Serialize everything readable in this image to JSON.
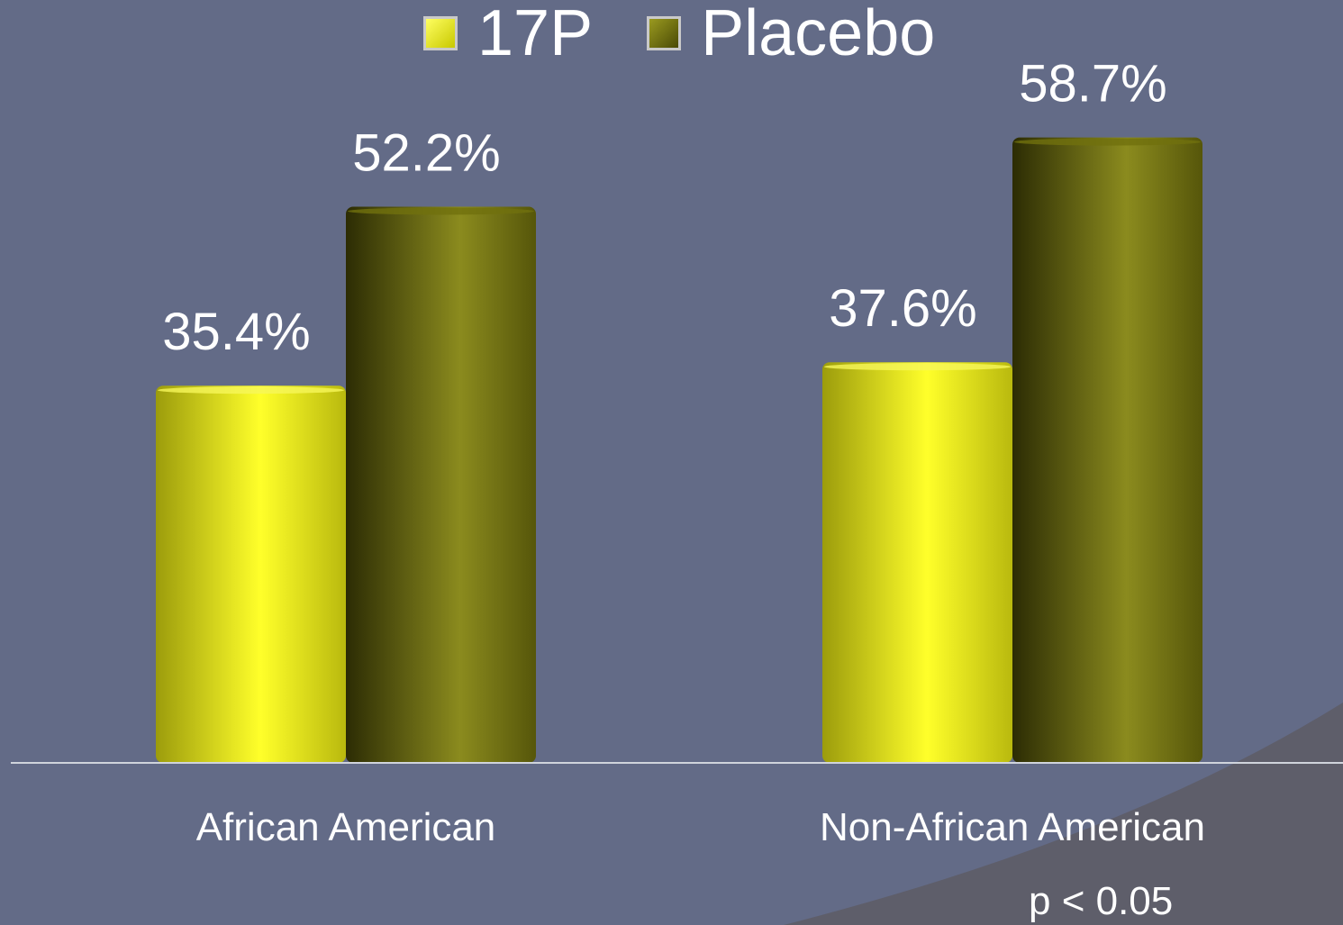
{
  "chart_data": {
    "type": "bar",
    "categories": [
      "African American",
      "Non-African American"
    ],
    "series": [
      {
        "name": "17P",
        "values": [
          35.4,
          37.6
        ],
        "labels": [
          "35.4%",
          "37.6%"
        ],
        "color": "#f4f41a"
      },
      {
        "name": "Placebo",
        "values": [
          52.2,
          58.7
        ],
        "labels": [
          "52.2%",
          "58.7%"
        ],
        "color": "#7a7a0c"
      }
    ],
    "ylim": [
      0,
      100
    ],
    "grid": false,
    "legend_position": "top-center",
    "annotation": "p < 0.05"
  },
  "colors": {
    "background": "#636b87",
    "baseline": "#d0d4dc",
    "text": "#ffffff"
  }
}
